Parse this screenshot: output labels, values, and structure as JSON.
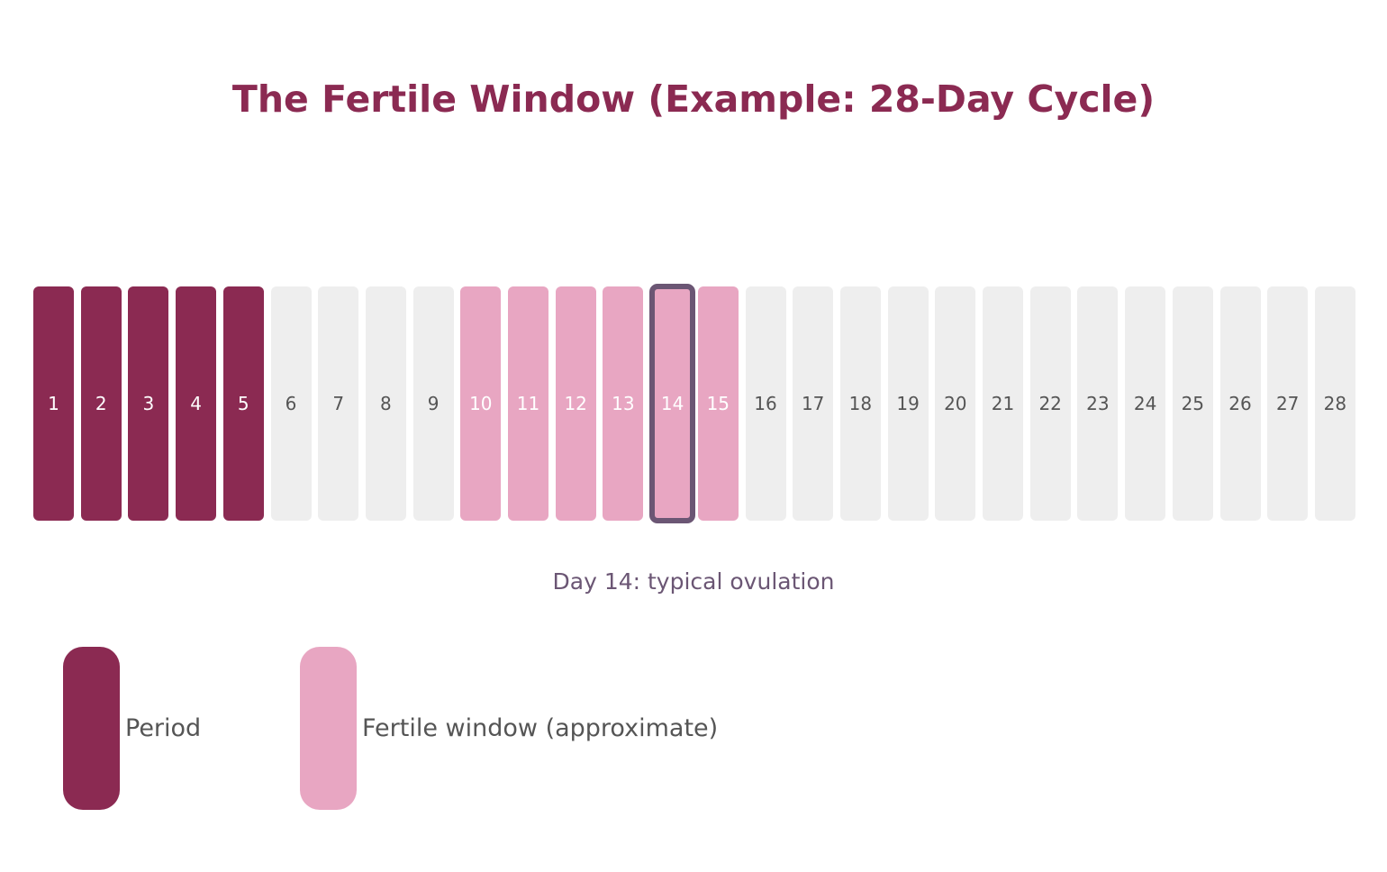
{
  "title": "The Fertile Window (Example: 28-Day Cycle)",
  "caption": "Day 14: typical ovulation",
  "colors": {
    "title": "#8b2a52",
    "period": "#8b2a52",
    "fertile": "#e8a6c2",
    "other": "#eeeeee",
    "ovulation_border": "#6b5674",
    "caption": "#6b5674",
    "light_text": "#ffffff",
    "dark_text": "#555555"
  },
  "days": [
    {
      "label": "1",
      "type": "period"
    },
    {
      "label": "2",
      "type": "period"
    },
    {
      "label": "3",
      "type": "period"
    },
    {
      "label": "4",
      "type": "period"
    },
    {
      "label": "5",
      "type": "period"
    },
    {
      "label": "6",
      "type": "other"
    },
    {
      "label": "7",
      "type": "other"
    },
    {
      "label": "8",
      "type": "other"
    },
    {
      "label": "9",
      "type": "other"
    },
    {
      "label": "10",
      "type": "fertile"
    },
    {
      "label": "11",
      "type": "fertile"
    },
    {
      "label": "12",
      "type": "fertile"
    },
    {
      "label": "13",
      "type": "fertile"
    },
    {
      "label": "14",
      "type": "fertile",
      "ovulation": true
    },
    {
      "label": "15",
      "type": "fertile"
    },
    {
      "label": "16",
      "type": "other"
    },
    {
      "label": "17",
      "type": "other"
    },
    {
      "label": "18",
      "type": "other"
    },
    {
      "label": "19",
      "type": "other"
    },
    {
      "label": "20",
      "type": "other"
    },
    {
      "label": "21",
      "type": "other"
    },
    {
      "label": "22",
      "type": "other"
    },
    {
      "label": "23",
      "type": "other"
    },
    {
      "label": "24",
      "type": "other"
    },
    {
      "label": "25",
      "type": "other"
    },
    {
      "label": "26",
      "type": "other"
    },
    {
      "label": "27",
      "type": "other"
    },
    {
      "label": "28",
      "type": "other"
    }
  ],
  "legend": {
    "period_label": "Period",
    "fertile_label": "Fertile window (approximate)"
  }
}
